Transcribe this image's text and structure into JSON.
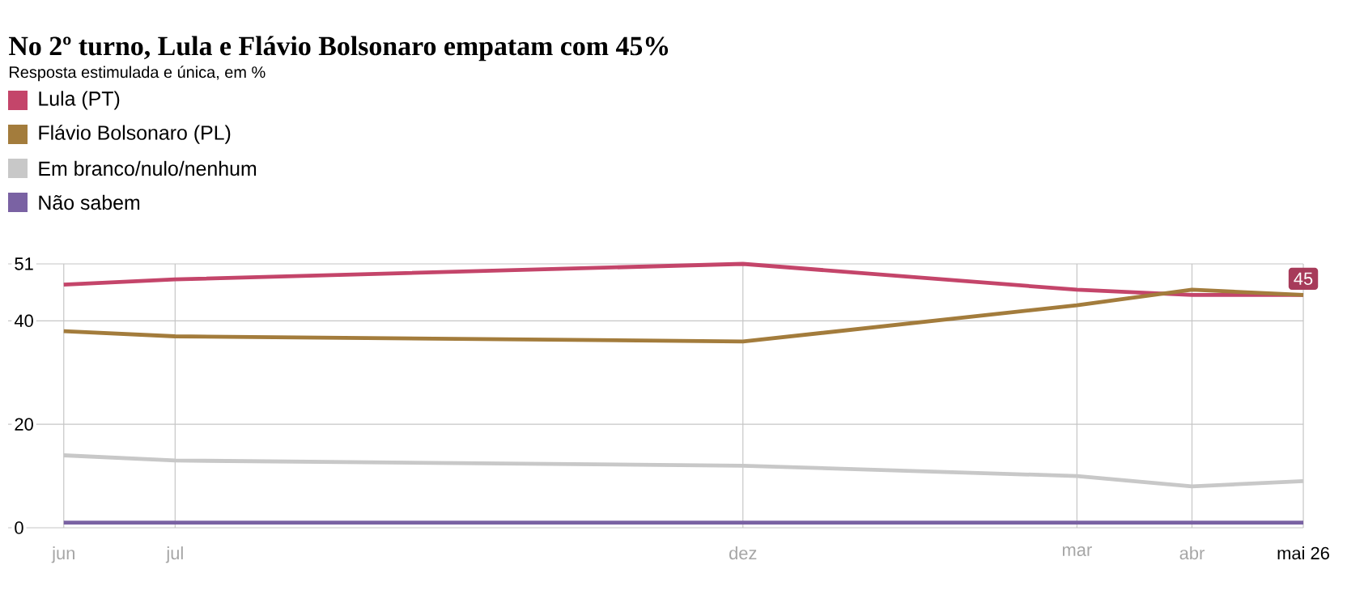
{
  "chart_data": {
    "type": "line",
    "title": "No 2º turno, Lula e Flávio Bolsonaro empatam com 45%",
    "subtitle": "Resposta estimulada e única, em %",
    "x": [
      "2025-06",
      "2025-07",
      "2025-12",
      "2026-03",
      "2026-04",
      "2026-05"
    ],
    "series": [
      {
        "name": "Lula (PT)",
        "color": "#c4456a",
        "values": [
          47,
          48,
          51,
          46,
          45,
          45
        ],
        "value_labels": [
          null,
          null,
          null,
          null,
          null,
          "45"
        ]
      },
      {
        "name": "Flávio Bolsonaro (PL)",
        "color": "#a37c3c",
        "values": [
          38,
          37,
          36,
          43,
          46,
          45
        ]
      },
      {
        "name": "Em branco/nulo/nenhum",
        "color": "#c8c8c8",
        "values": [
          14,
          13,
          12,
          10,
          8,
          9
        ]
      },
      {
        "name": "Não sabem",
        "color": "#7a62a3",
        "values": [
          1,
          1,
          1,
          1,
          1,
          1
        ]
      }
    ],
    "xlim": [
      "2025-05-17",
      "2026-05-01"
    ],
    "ylim": [
      0,
      51
    ],
    "xticks": [
      {
        "value": "2025-06",
        "label": "jun"
      },
      {
        "value": "2025-07",
        "label": "jul"
      },
      {
        "value": "2025-12",
        "label": "dez"
      },
      {
        "value": "2026-03",
        "label": "mar"
      },
      {
        "value": "2026-04",
        "label": "abr"
      },
      {
        "value": "2026-05",
        "label": "mai 26"
      }
    ],
    "yticks": [
      0,
      20,
      40,
      51
    ],
    "grid": true,
    "legend": "top left",
    "line_style": "solid",
    "marker": "none"
  }
}
